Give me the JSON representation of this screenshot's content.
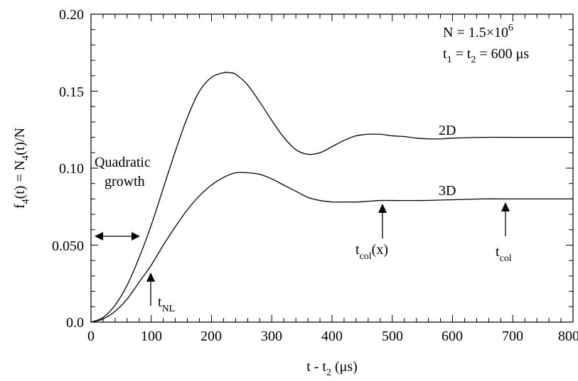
{
  "chart_data": {
    "type": "line",
    "xlabel": {
      "main": "t - t",
      "sub": "2",
      "rest": " (μs)"
    },
    "ylabel": {
      "p1": "f",
      "s1": "4",
      "p2": "(t) = N",
      "s2": "4",
      "p3": "(t)/N"
    },
    "xlim": [
      0,
      800
    ],
    "ylim": [
      0,
      0.2
    ],
    "x_ticks": [
      0,
      100,
      200,
      300,
      400,
      500,
      600,
      700,
      800
    ],
    "x_tick_labels": [
      "0",
      "100",
      "200",
      "300",
      "400",
      "500",
      "600",
      "700",
      "800"
    ],
    "y_ticks": [
      0,
      0.05,
      0.1,
      0.15,
      0.2
    ],
    "y_tick_labels": [
      "0.0",
      "0.050",
      "0.10",
      "0.15",
      "0.20"
    ],
    "grid": false,
    "series": [
      {
        "name": "2D",
        "x": [
          0,
          20,
          40,
          60,
          80,
          100,
          120,
          140,
          160,
          180,
          200,
          220,
          230,
          240,
          260,
          280,
          300,
          320,
          340,
          360,
          380,
          400,
          420,
          440,
          460,
          480,
          500,
          520,
          540,
          560,
          580,
          600,
          650,
          700,
          750,
          800
        ],
        "y": [
          0,
          0.003,
          0.011,
          0.024,
          0.042,
          0.063,
          0.087,
          0.111,
          0.133,
          0.15,
          0.159,
          0.162,
          0.162,
          0.161,
          0.154,
          0.143,
          0.131,
          0.12,
          0.112,
          0.109,
          0.11,
          0.114,
          0.118,
          0.121,
          0.122,
          0.122,
          0.121,
          0.1205,
          0.1195,
          0.119,
          0.119,
          0.1195,
          0.12,
          0.12,
          0.12,
          0.12
        ]
      },
      {
        "name": "3D",
        "x": [
          0,
          20,
          40,
          60,
          80,
          100,
          120,
          140,
          160,
          180,
          200,
          220,
          240,
          260,
          280,
          300,
          320,
          340,
          360,
          380,
          400,
          420,
          440,
          460,
          480,
          500,
          550,
          600,
          650,
          700,
          750,
          800
        ],
        "y": [
          0,
          0.002,
          0.007,
          0.015,
          0.026,
          0.037,
          0.05,
          0.062,
          0.073,
          0.082,
          0.089,
          0.094,
          0.097,
          0.097,
          0.096,
          0.093,
          0.089,
          0.085,
          0.081,
          0.079,
          0.078,
          0.078,
          0.078,
          0.0785,
          0.079,
          0.079,
          0.079,
          0.0795,
          0.08,
          0.08,
          0.08,
          0.08
        ]
      }
    ],
    "labels": {
      "series_2d": "2D",
      "series_3d": "3D",
      "info_n": {
        "main": "N = 1.5×10",
        "sup": "6"
      },
      "info_t": {
        "a": "t",
        "a_sub": "1",
        "b": " = t",
        "b_sub": "2",
        "c": " = 600 μs"
      },
      "quadratic_line1": "Quadratic",
      "quadratic_line2": "growth",
      "t_nl": {
        "main": "t",
        "sub": "NL"
      },
      "t_col_x": {
        "main": "t",
        "sub": "col",
        "rest": "(x)"
      },
      "t_col": {
        "main": "t",
        "sub": "col"
      }
    },
    "annotations": [
      {
        "name": "t-nl",
        "x": 100
      },
      {
        "name": "t-col-x",
        "x": 485
      },
      {
        "name": "t-col",
        "x": 690
      }
    ]
  }
}
